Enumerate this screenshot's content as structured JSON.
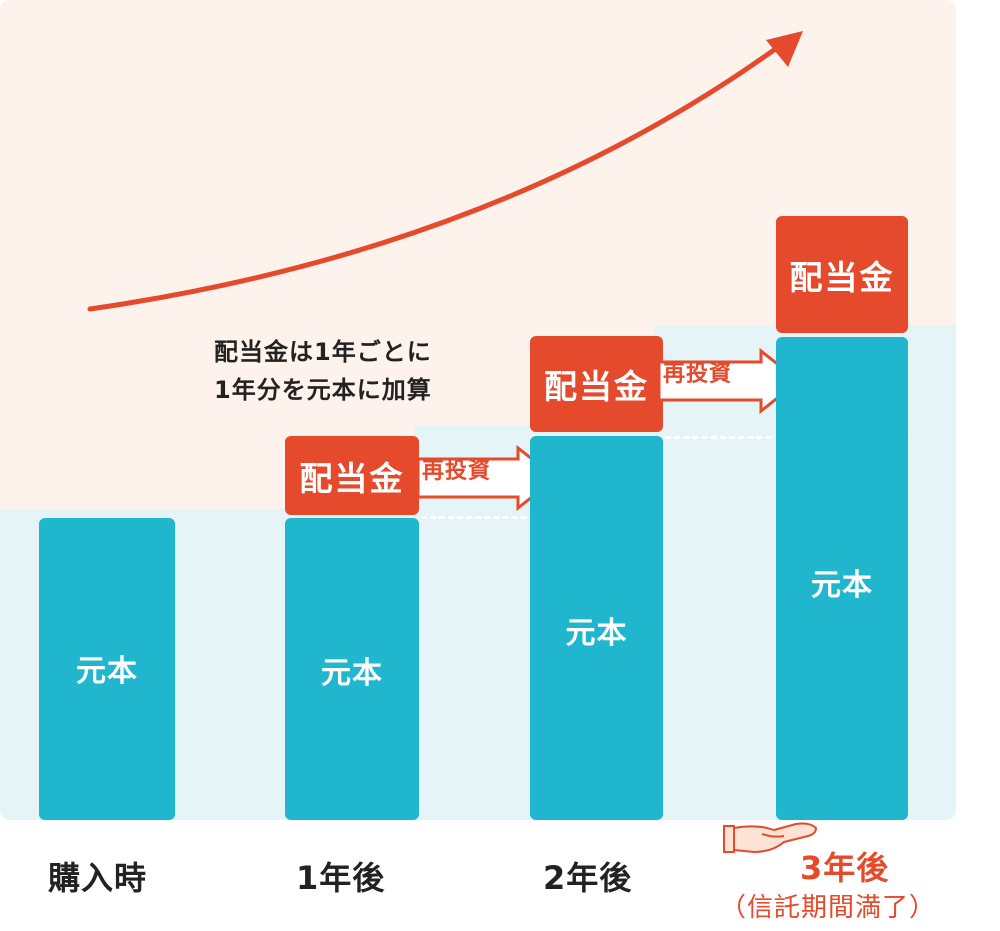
{
  "colors": {
    "principal": "#1fb6ce",
    "dividend": "#e44a2b",
    "text": "#222222",
    "peach": "#fdf2ec",
    "band": "#e5f4f6"
  },
  "note": {
    "line1": "配当金は1年ごとに",
    "line2": "1年分を元本に加算"
  },
  "bars": [
    {
      "label": "元本",
      "period": "購入時"
    },
    {
      "label": "元本",
      "dividend": "配当金",
      "reinvest": "再投資",
      "period": "1年後"
    },
    {
      "label": "元本",
      "dividend": "配当金",
      "reinvest": "再投資",
      "period": "2年後"
    },
    {
      "label": "元本",
      "dividend": "配当金",
      "period": "3年後",
      "period_note": "（信託期間満了）"
    }
  ],
  "icons": {
    "growth_arrow": "curved-arrow-up-right",
    "hand": "open-palm-hand"
  }
}
